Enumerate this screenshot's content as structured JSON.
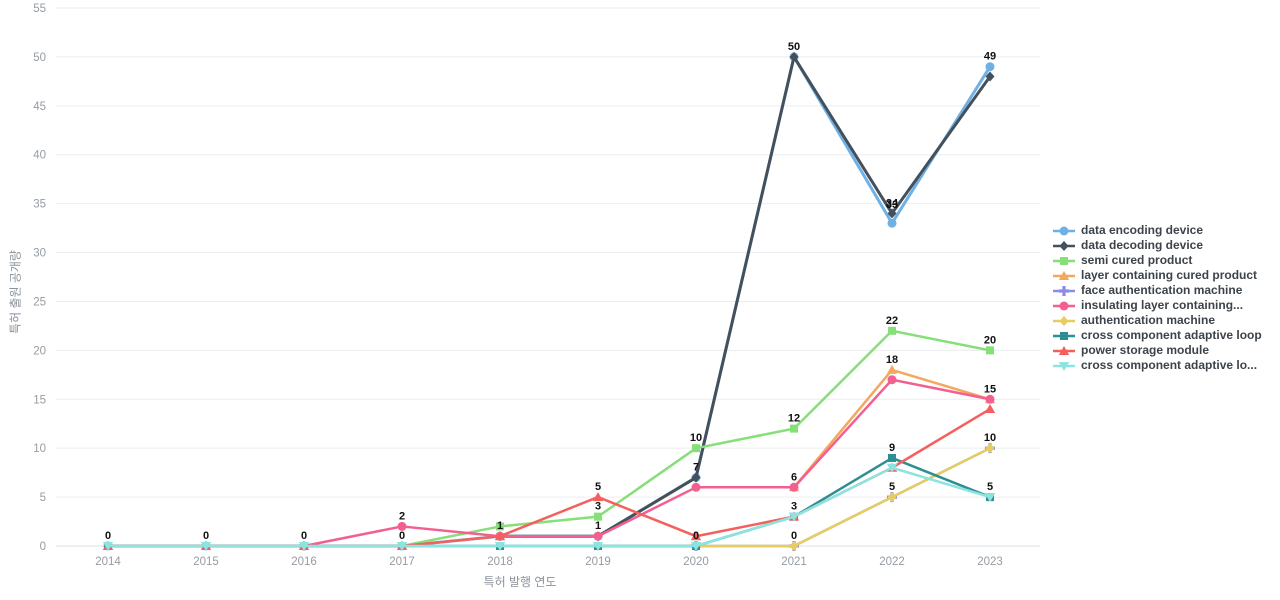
{
  "chart_data": {
    "type": "line",
    "title": "",
    "xlabel": "특허 발행 연도",
    "ylabel": "특허 출원 공개량",
    "x": [
      2014,
      2015,
      2016,
      2017,
      2018,
      2019,
      2020,
      2021,
      2022,
      2023
    ],
    "ylim": [
      0,
      55
    ],
    "y_tick_step": 5,
    "grid": true,
    "legend_position": "right",
    "series": [
      {
        "name": "data encoding device",
        "color": "#6fb1e4",
        "marker": "circle",
        "line_width": 3,
        "values": [
          0,
          0,
          0,
          0,
          1,
          1,
          7,
          50,
          33,
          49
        ]
      },
      {
        "name": "data decoding device",
        "color": "#44505c",
        "marker": "diamond",
        "line_width": 3,
        "values": [
          null,
          null,
          null,
          null,
          1,
          1,
          7,
          50,
          34,
          48
        ]
      },
      {
        "name": "semi cured product",
        "color": "#86df78",
        "marker": "square",
        "line_width": 2.5,
        "values": [
          null,
          null,
          null,
          0,
          2,
          3,
          10,
          12,
          22,
          20
        ]
      },
      {
        "name": "layer containing cured product",
        "color": "#f4a75e",
        "marker": "triangle-up",
        "line_width": 2.5,
        "values": [
          null,
          null,
          null,
          null,
          null,
          null,
          null,
          6,
          18,
          15
        ]
      },
      {
        "name": "face authentication machine",
        "color": "#8b8be8",
        "marker": "cross",
        "line_width": 2.5,
        "values": [
          null,
          null,
          null,
          null,
          null,
          null,
          0,
          0,
          5,
          10
        ]
      },
      {
        "name": "insulating layer containing...",
        "color": "#f35f8f",
        "marker": "circle",
        "line_width": 2.5,
        "values": [
          null,
          null,
          0,
          2,
          1,
          1,
          6,
          6,
          17,
          15
        ]
      },
      {
        "name": "authentication machine",
        "color": "#e7cd5f",
        "marker": "diamond",
        "line_width": 2.5,
        "values": [
          null,
          null,
          null,
          null,
          null,
          0,
          0,
          0,
          5,
          10
        ]
      },
      {
        "name": "cross component adaptive loop",
        "color": "#2e8f92",
        "marker": "square",
        "line_width": 2.5,
        "values": [
          0,
          0,
          0,
          0,
          0,
          0,
          0,
          3,
          9,
          5
        ]
      },
      {
        "name": "power storage module",
        "color": "#f4605e",
        "marker": "triangle-up",
        "line_width": 2.5,
        "values": [
          0,
          0,
          0,
          0,
          1,
          5,
          1,
          3,
          8,
          14
        ]
      },
      {
        "name": "cross component adaptive lo...",
        "color": "#8ce4e0",
        "marker": "triangle-down",
        "line_width": 2.5,
        "values": [
          0,
          0,
          0,
          0,
          0,
          0,
          0,
          3,
          8,
          5
        ]
      }
    ],
    "point_labels": [
      {
        "year": 2014,
        "v": 0,
        "text": "0"
      },
      {
        "year": 2015,
        "v": 0,
        "text": "0"
      },
      {
        "year": 2016,
        "v": 0,
        "text": "0"
      },
      {
        "year": 2017,
        "v": 2,
        "text": "2"
      },
      {
        "year": 2017,
        "v": 0,
        "text": "0"
      },
      {
        "year": 2018,
        "v": 1,
        "text": "1"
      },
      {
        "year": 2019,
        "v": 5,
        "text": "5"
      },
      {
        "year": 2019,
        "v": 3,
        "text": "3"
      },
      {
        "year": 2019,
        "v": 1,
        "text": "1"
      },
      {
        "year": 2020,
        "v": 10,
        "text": "10"
      },
      {
        "year": 2020,
        "v": 7,
        "text": "7"
      },
      {
        "year": 2020,
        "v": 0,
        "text": "0"
      },
      {
        "year": 2021,
        "v": 50,
        "text": "50"
      },
      {
        "year": 2021,
        "v": 12,
        "text": "12"
      },
      {
        "year": 2021,
        "v": 6,
        "text": "6"
      },
      {
        "year": 2021,
        "v": 3,
        "text": "3"
      },
      {
        "year": 2021,
        "v": 0,
        "text": "0"
      },
      {
        "year": 2022,
        "v": 34,
        "text": "34"
      },
      {
        "year": 2022,
        "v": 33,
        "text": "33",
        "dy": -8
      },
      {
        "year": 2022,
        "v": 22,
        "text": "22"
      },
      {
        "year": 2022,
        "v": 18,
        "text": "18"
      },
      {
        "year": 2022,
        "v": 9,
        "text": "9"
      },
      {
        "year": 2022,
        "v": 5,
        "text": "5"
      },
      {
        "year": 2023,
        "v": 49,
        "text": "49"
      },
      {
        "year": 2023,
        "v": 20,
        "text": "20"
      },
      {
        "year": 2023,
        "v": 15,
        "text": "15"
      },
      {
        "year": 2023,
        "v": 10,
        "text": "10"
      },
      {
        "year": 2023,
        "v": 5,
        "text": "5"
      }
    ],
    "style": {
      "grid_color": "#ebedf0",
      "axis_line_color": "#e2e6ea",
      "tick_label_color": "#969ca3",
      "value_label_color": "#111111"
    }
  }
}
